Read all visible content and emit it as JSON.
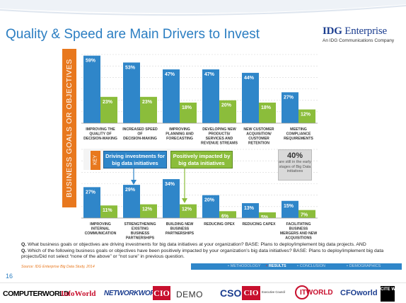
{
  "slide": {
    "title": "Quality & Speed are Main Drivers to Invest",
    "page_number": "16",
    "side_label": "BUSINESS GOALS OR OBJECTIVES"
  },
  "logo": {
    "main_bold": "IDG",
    "main_regular": " Enterprise",
    "sub": "An IDG Communications Company"
  },
  "key": {
    "tag": "KEY",
    "blue_label": "Driving investments for big data initiatives",
    "green_label": "Positively impacted by big data initiatives"
  },
  "callout": {
    "number": "40%",
    "text": "are still in the early stages of Big Data initiatives"
  },
  "question": {
    "q1_prefix": "Q.",
    "q1": " What business goals or objectives are driving investments for big data initiatives at your organization? BASE: Plans to deploy/implement big data projects. AND",
    "q2_prefix": "Q.",
    "q2": " Which of the following business goals or objectives have been positively impacted by your organization’s big data initiatives? BASE: Plans to deploy/implement big data projects/Did not select “none of the above” or “not sure” in previous question."
  },
  "source": "Source: IDG Enterprise Big Data Study, 2014",
  "nav": {
    "methodology": "METHODOLOGY",
    "results": "RESULTS",
    "conclusion": "CONCLUSION",
    "demographics": "DEMOGRAPHICS"
  },
  "footer_brands": {
    "computerworld": "COMPUTERWORLD",
    "infoworld": "InfoWorld",
    "networkworld": "NETWORKWORLD",
    "cio": "CIO",
    "demo": "DEMO",
    "cso": "CSO",
    "cec": "CIO",
    "cec_text": "Executive Council",
    "itworld": "ITWORLD",
    "cfoworld": "CFOworld",
    "citeworld": "CITE WORLD"
  },
  "colors": {
    "blue": "#2f86c9",
    "green": "#8bbd3b",
    "orange": "#e8781e",
    "title_blue": "#2b7ec2"
  },
  "chart_data": [
    {
      "type": "bar",
      "categories": [
        "IMPROVING THE QUALITY OF DECISION-MAKING",
        "INCREASED SPEED OF DECISION-MAKING",
        "IMPROVING PLANNING AND FORECASTING",
        "DEVELOPING NEW PRODUCTS/ SERVICES AND REVENUE STREAMS",
        "NEW CUSTOMER ACQUISITION/ CUSTOMER RETENTION",
        "MEETING COMPLIANCE REQUIREMENTS"
      ],
      "series": [
        {
          "name": "Driving investments for big data initiatives",
          "values": [
            59,
            53,
            47,
            47,
            44,
            27
          ]
        },
        {
          "name": "Positively impacted by big data initiatives",
          "values": [
            23,
            23,
            18,
            20,
            18,
            12
          ]
        }
      ],
      "labels": [
        "59%",
        "53%",
        "47%",
        "47%",
        "44%",
        "27%",
        "23%",
        "23%",
        "18%",
        "20%",
        "18%",
        "12%"
      ],
      "ylim": [
        0,
        60
      ]
    },
    {
      "type": "bar",
      "categories": [
        "IMPROVING INTERNAL COMMUNICATION",
        "STRENGTHENING EXISTING BUSINESS PARTNERSHIPS",
        "BUILDING NEW BUSINESS PARTNERSHIPS",
        "REDUCING OPEX",
        "REDUCING CAPEX",
        "FACILITATING BUSINESS MERGERS AND NEW ACQUISITIONS"
      ],
      "series": [
        {
          "name": "Driving investments for big data initiatives",
          "values": [
            27,
            29,
            34,
            20,
            13,
            15
          ]
        },
        {
          "name": "Positively impacted by big data initiatives",
          "values": [
            11,
            12,
            12,
            6,
            5,
            7
          ]
        }
      ],
      "labels": [
        "27%",
        "29%",
        "34%",
        "20%",
        "13%",
        "15%",
        "11%",
        "12%",
        "12%",
        "6%",
        "5%",
        "7%"
      ],
      "ylim": [
        0,
        60
      ]
    }
  ]
}
